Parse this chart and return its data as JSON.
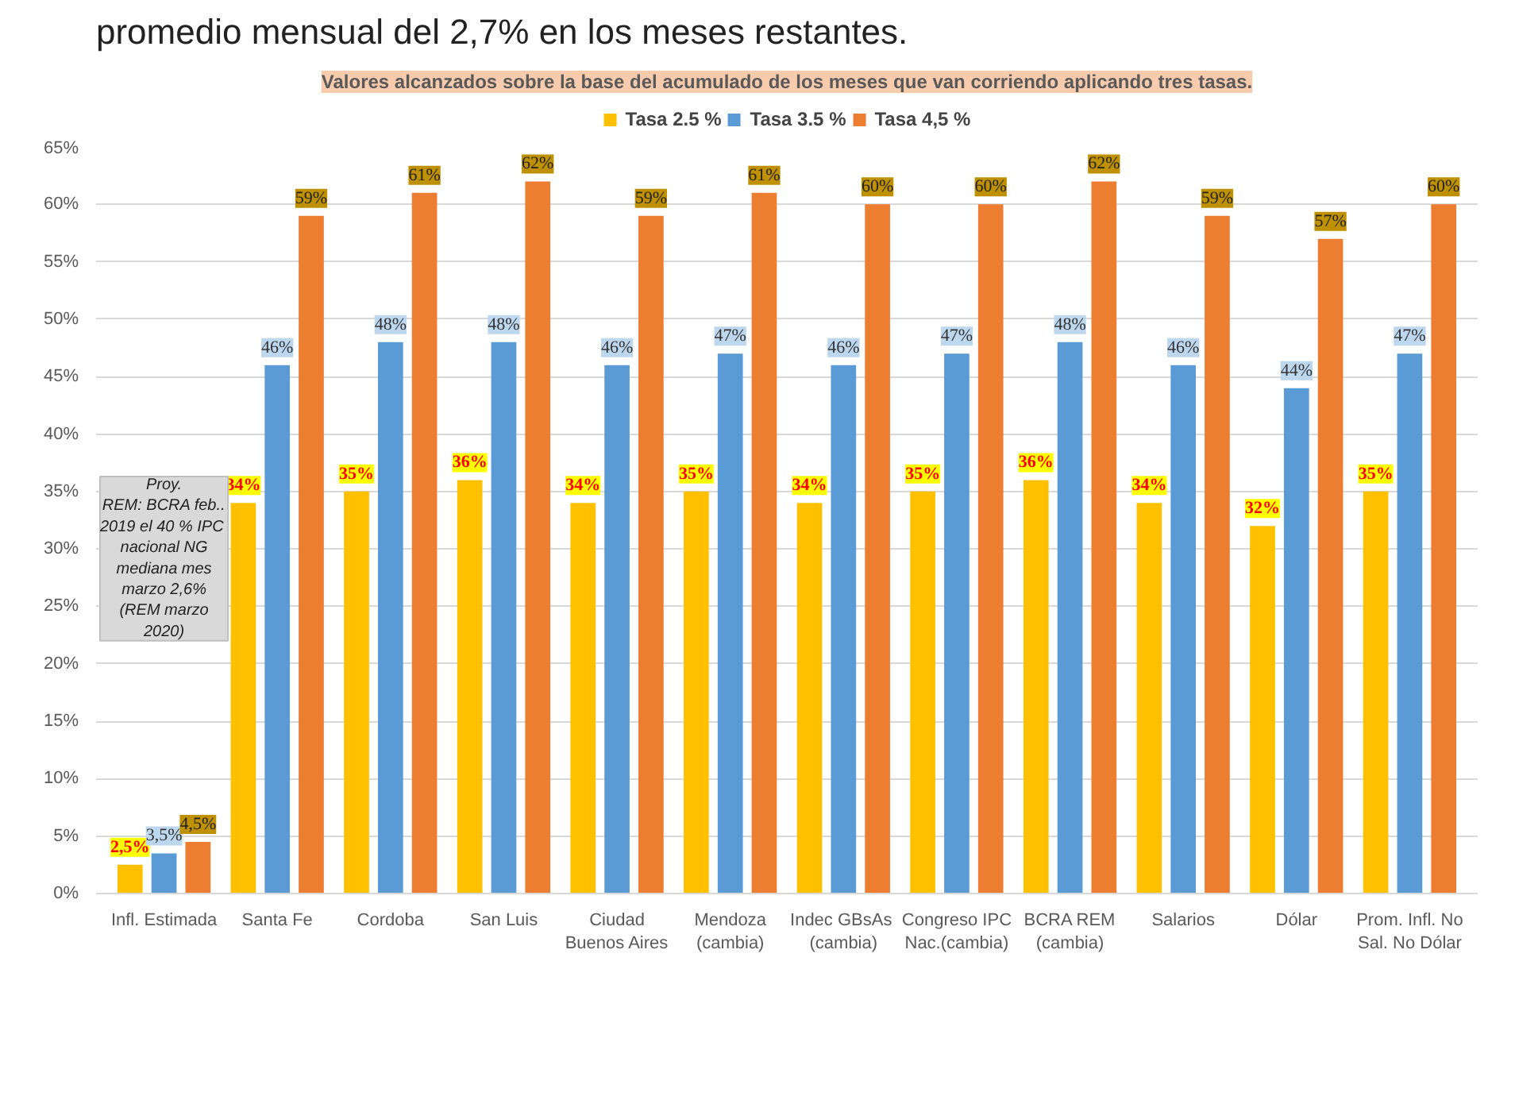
{
  "chart_data": {
    "type": "bar",
    "title": "Valores alcanzados sobre la base del acumulado de los meses que van corriendo aplicando tres tasas.",
    "categories": [
      "Infl. Estimada",
      "Santa Fe",
      "Cordoba",
      "San Luis",
      "Ciudad\nBuenos Aires",
      "Mendoza\n(cambia)",
      "Indec  GBsAs\n(cambia)",
      "Congreso IPC\nNac.(cambia)",
      "BCRA REM\n(cambia)",
      "Salarios",
      "Dólar",
      "Prom. Infl. No\nSal. No Dólar"
    ],
    "series": [
      {
        "name": "Tasa 2.5 %",
        "color": "#ffc000",
        "values": [
          2.5,
          34,
          35,
          36,
          34,
          35,
          34,
          35,
          36,
          34,
          32,
          35
        ],
        "value_labels": [
          "2,5%",
          "34%",
          "35%",
          "36%",
          "34%",
          "35%",
          "34%",
          "35%",
          "36%",
          "34%",
          "32%",
          "35%"
        ]
      },
      {
        "name": "Tasa 3.5 %",
        "color": "#5b9bd5",
        "values": [
          3.5,
          46,
          48,
          48,
          46,
          47,
          46,
          47,
          48,
          46,
          44,
          47
        ],
        "value_labels": [
          "3,5%",
          "46%",
          "48%",
          "48%",
          "46%",
          "47%",
          "46%",
          "47%",
          "48%",
          "46%",
          "44%",
          "47%"
        ]
      },
      {
        "name": "Tasa 4,5 %",
        "color": "#ed7d31",
        "values": [
          4.5,
          59,
          61,
          62,
          59,
          61,
          60,
          60,
          62,
          59,
          57,
          60
        ],
        "value_labels": [
          "4,5%",
          "59%",
          "61%",
          "62%",
          "59%",
          "61%",
          "60%",
          "60%",
          "62%",
          "59%",
          "57%",
          "60%"
        ]
      }
    ],
    "ylim": [
      0,
      65
    ],
    "yticks": [
      {
        "value": 0,
        "label": "0%"
      },
      {
        "value": 5,
        "label": "5%"
      },
      {
        "value": 10,
        "label": "10%"
      },
      {
        "value": 15,
        "label": "15%"
      },
      {
        "value": 20,
        "label": "20%"
      },
      {
        "value": 25,
        "label": "25%"
      },
      {
        "value": 30,
        "label": "30%"
      },
      {
        "value": 35,
        "label": "35%"
      },
      {
        "value": 40,
        "label": "40%"
      },
      {
        "value": 45,
        "label": "45%"
      },
      {
        "value": 50,
        "label": "50%"
      },
      {
        "value": 55,
        "label": "55%"
      },
      {
        "value": 60,
        "label": "60%"
      },
      {
        "value": 65,
        "label": "65%"
      }
    ],
    "grid": "y",
    "legend": "top",
    "annotations": [
      "promedio mensual del 2,7% en los meses restantes.",
      "Proy.\nREM: BCRA feb..\n2019 el 40 %  IPC\nnacional NG\nmediana mes\nmarzo 2,6%\n(REM marzo\n2020)"
    ]
  }
}
